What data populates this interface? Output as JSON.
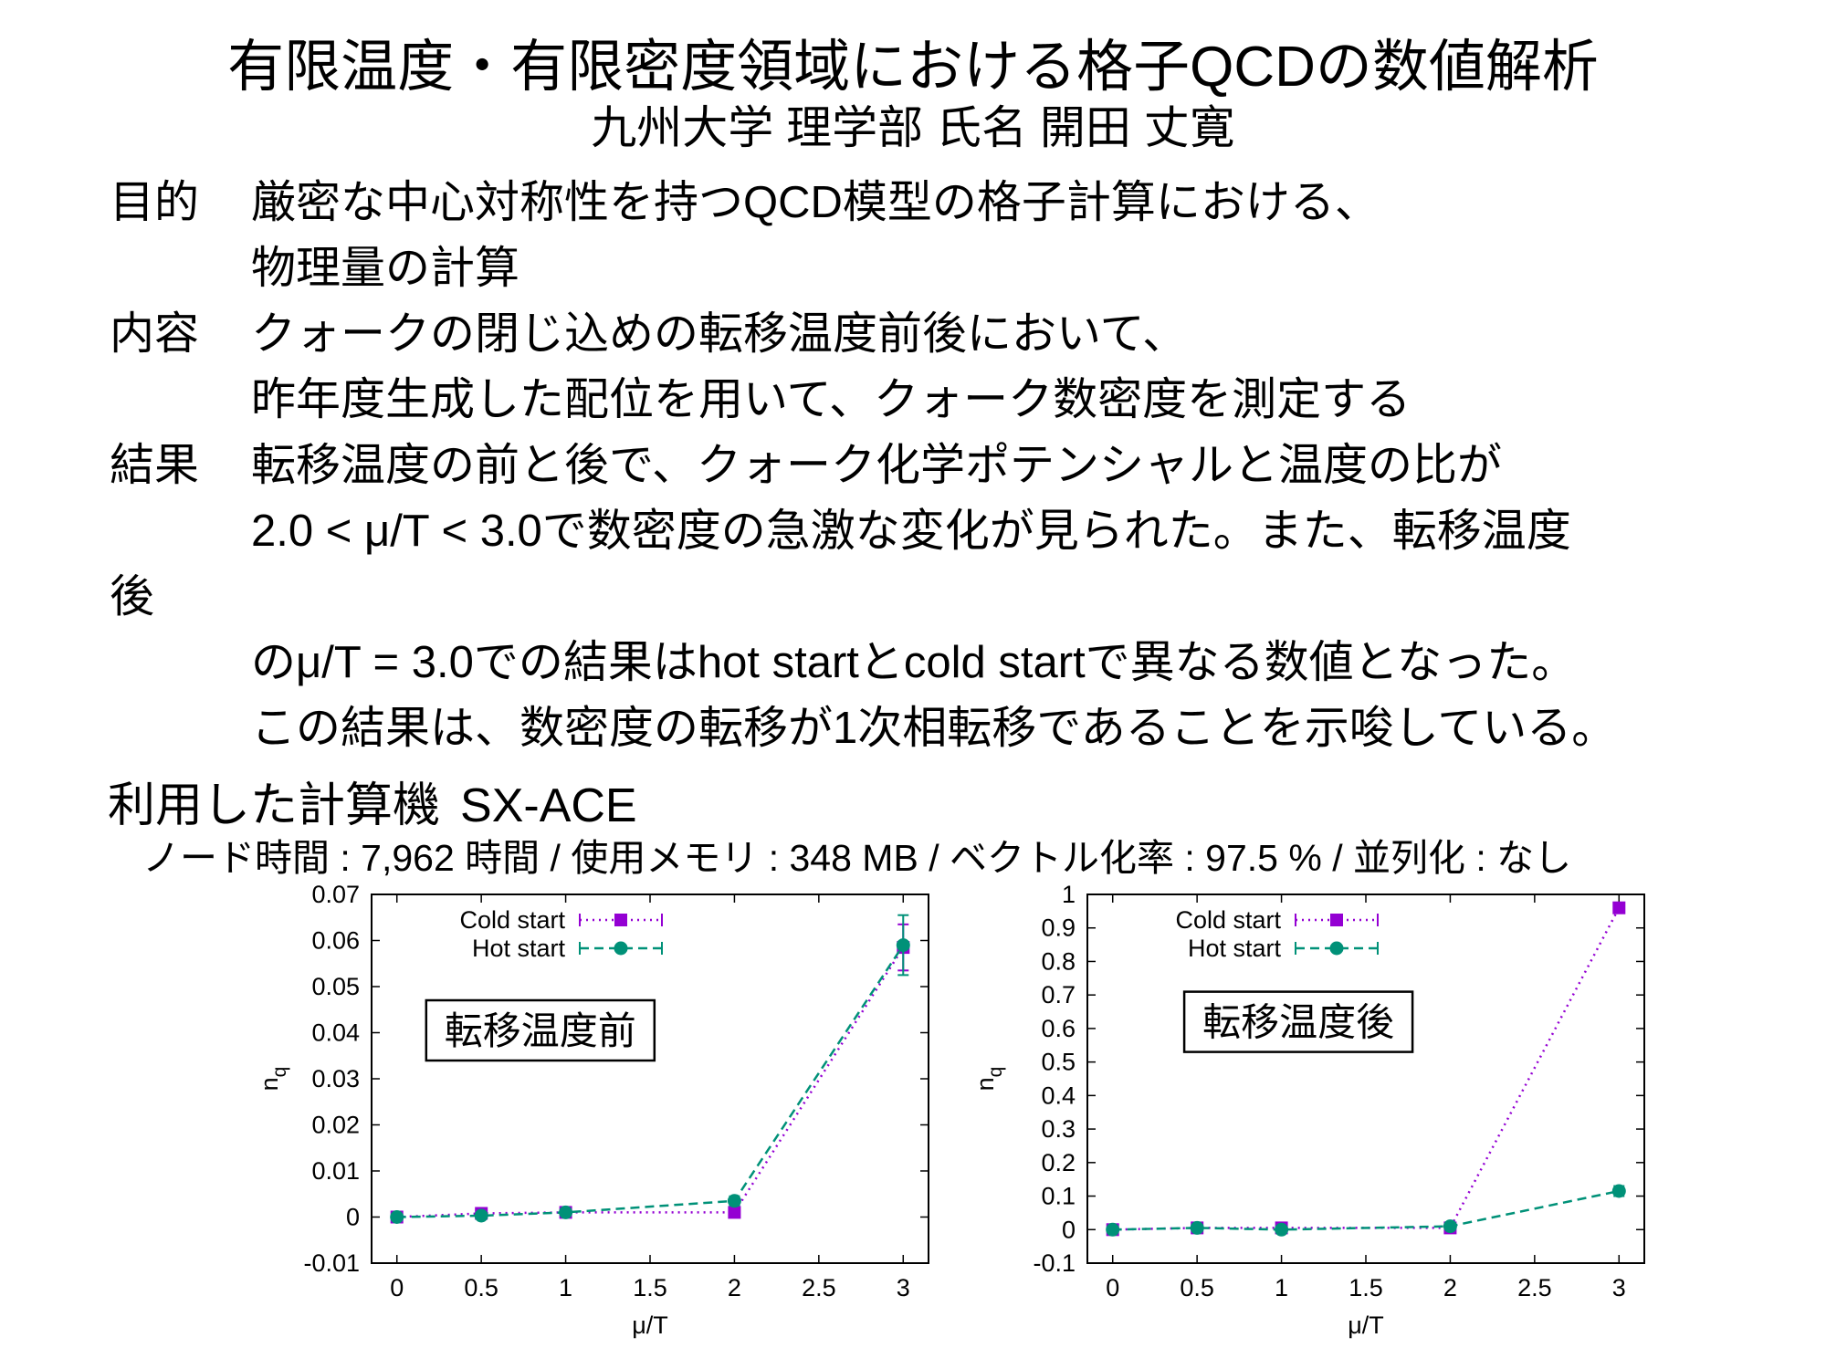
{
  "title": "有限温度・有限密度領域における格子QCDの数値解析",
  "subtitle": "九州大学 理学部 氏名 開田 丈寛",
  "body_lines": [
    {
      "label": "目的",
      "flush": false,
      "text": "厳密な中心対称性を持つQCD模型の格子計算における、"
    },
    {
      "label": "",
      "flush": false,
      "text": "物理量の計算"
    },
    {
      "label": "内容",
      "flush": false,
      "text": "クォークの閉じ込めの転移温度前後において、"
    },
    {
      "label": "",
      "flush": false,
      "text": "昨年度生成した配位を用いて、クォーク数密度を測定する"
    },
    {
      "label": "結果",
      "flush": false,
      "text": "転移温度の前と後で、クォーク化学ポテンシャルと温度の比が"
    },
    {
      "label": "",
      "flush": false,
      "text": "2.0 < μ/T < 3.0で数密度の急激な変化が見られた。また、転移温度"
    },
    {
      "label": "",
      "flush": true,
      "text": "後"
    },
    {
      "label": "",
      "flush": false,
      "text": "のμ/T = 3.0での結果はhot startとcold startで異なる数値となった。"
    },
    {
      "label": "",
      "flush": false,
      "text": "この結果は、数密度の転移が1次相転移であることを示唆している。"
    }
  ],
  "machine": {
    "label": "利用した計算機",
    "name": "SX-ACE",
    "stats": "ノード時間 : 7,962 時間 / 使用メモリ : 348 MB / ベクトル化率 : 97.5 % / 並列化 : なし"
  },
  "chart_data": [
    {
      "type": "scatter",
      "title": "",
      "annotation": {
        "text": "転移温度前",
        "cx": 0.85,
        "cy": 0.0405
      },
      "xlabel": "μ/T",
      "ylabel": "n_q",
      "xlim": [
        -0.15,
        3.15
      ],
      "ylim": [
        -0.01,
        0.07
      ],
      "grid": false,
      "legend_position": "top-left-inside",
      "xticks": [
        {
          "v": 0,
          "label": "0"
        },
        {
          "v": 0.5,
          "label": "0.5"
        },
        {
          "v": 1,
          "label": "1"
        },
        {
          "v": 1.5,
          "label": "1.5"
        },
        {
          "v": 2,
          "label": "2"
        },
        {
          "v": 2.5,
          "label": "2.5"
        },
        {
          "v": 3,
          "label": "3"
        }
      ],
      "yticks": [
        {
          "v": -0.01,
          "label": "-0.01"
        },
        {
          "v": 0,
          "label": "0"
        },
        {
          "v": 0.01,
          "label": "0.01"
        },
        {
          "v": 0.02,
          "label": "0.02"
        },
        {
          "v": 0.03,
          "label": "0.03"
        },
        {
          "v": 0.04,
          "label": "0.04"
        },
        {
          "v": 0.05,
          "label": "0.05"
        },
        {
          "v": 0.06,
          "label": "0.06"
        },
        {
          "v": 0.07,
          "label": "0.07"
        }
      ],
      "series": [
        {
          "name": "Cold start",
          "color": "#9400d3",
          "marker": "square",
          "dash": "2,5",
          "x": [
            0,
            0.5,
            1,
            2,
            3
          ],
          "y": [
            0.0,
            0.0008,
            0.001,
            0.001,
            0.0585
          ],
          "yerr": [
            0.0004,
            0.0004,
            0.0005,
            0.0008,
            0.005
          ]
        },
        {
          "name": "Hot start",
          "color": "#009178",
          "marker": "circle",
          "dash": "10,6",
          "x": [
            0,
            0.5,
            1,
            2,
            3
          ],
          "y": [
            0.0,
            0.0003,
            0.001,
            0.0035,
            0.059
          ],
          "yerr": [
            0.0004,
            0.0004,
            0.0005,
            0.001,
            0.0065
          ]
        }
      ]
    },
    {
      "type": "scatter",
      "title": "",
      "annotation": {
        "text": "転移温度後",
        "cx": 1.1,
        "cy": 0.62
      },
      "xlabel": "μ/T",
      "ylabel": "n_q",
      "xlim": [
        -0.15,
        3.15
      ],
      "ylim": [
        -0.1,
        1.0
      ],
      "grid": false,
      "legend_position": "top-left-inside",
      "xticks": [
        {
          "v": 0,
          "label": "0"
        },
        {
          "v": 0.5,
          "label": "0.5"
        },
        {
          "v": 1,
          "label": "1"
        },
        {
          "v": 1.5,
          "label": "1.5"
        },
        {
          "v": 2,
          "label": "2"
        },
        {
          "v": 2.5,
          "label": "2.5"
        },
        {
          "v": 3,
          "label": "3"
        }
      ],
      "yticks": [
        {
          "v": -0.1,
          "label": "-0.1"
        },
        {
          "v": 0,
          "label": "0"
        },
        {
          "v": 0.1,
          "label": "0.1"
        },
        {
          "v": 0.2,
          "label": "0.2"
        },
        {
          "v": 0.3,
          "label": "0.3"
        },
        {
          "v": 0.4,
          "label": "0.4"
        },
        {
          "v": 0.5,
          "label": "0.5"
        },
        {
          "v": 0.6,
          "label": "0.6"
        },
        {
          "v": 0.7,
          "label": "0.7"
        },
        {
          "v": 0.8,
          "label": "0.8"
        },
        {
          "v": 0.9,
          "label": "0.9"
        },
        {
          "v": 1,
          "label": "1"
        }
      ],
      "series": [
        {
          "name": "Cold start",
          "color": "#9400d3",
          "marker": "square",
          "dash": "2,5",
          "x": [
            0,
            0.5,
            1,
            2,
            3
          ],
          "y": [
            0.0,
            0.005,
            0.005,
            0.005,
            0.96
          ],
          "yerr": [
            0.004,
            0.004,
            0.004,
            0.004,
            0.006
          ]
        },
        {
          "name": "Hot start",
          "color": "#009178",
          "marker": "circle",
          "dash": "10,6",
          "x": [
            0,
            0.5,
            1,
            2,
            3
          ],
          "y": [
            0.0,
            0.005,
            0.0,
            0.01,
            0.115
          ],
          "yerr": [
            0.004,
            0.004,
            0.004,
            0.005,
            0.015
          ]
        }
      ]
    }
  ]
}
